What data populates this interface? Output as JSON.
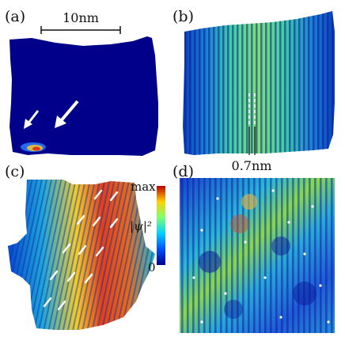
{
  "figure": {
    "panels": [
      {
        "id": "a",
        "label": "(a)"
      },
      {
        "id": "b",
        "label": "(b)"
      },
      {
        "id": "c",
        "label": "(c)"
      },
      {
        "id": "d",
        "label": "(d)"
      }
    ],
    "scale_bar_a": "10nm",
    "scale_bar_b": "0.7nm",
    "colorbar": {
      "max_label": "max",
      "min_label": "0",
      "quantity_label": "|ψ|²"
    },
    "colors": {
      "background_blue": "#0a1a8c",
      "deep_blue": "#00008b",
      "map_low": "#0030d0",
      "map_mid": "#21c2c4",
      "map_high": "#e8d220",
      "map_max": "#cc1a10"
    }
  }
}
